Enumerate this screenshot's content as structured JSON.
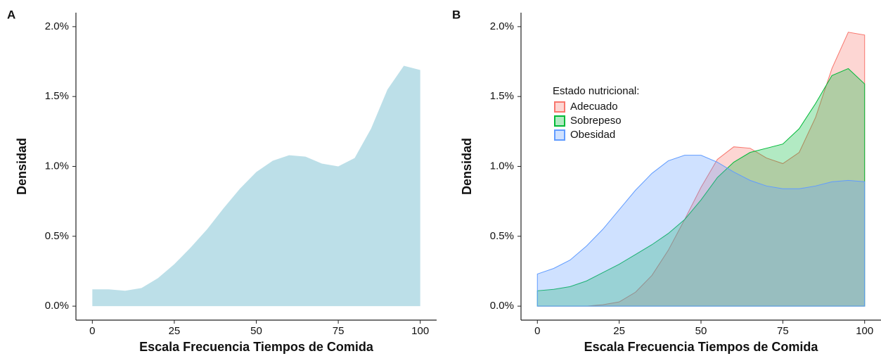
{
  "chart_data": [
    {
      "type": "area",
      "panel_label": "A",
      "xlabel": "Escala Frecuencia Tiempos de Comida",
      "ylabel": "Densidad",
      "x": [
        0,
        5,
        10,
        15,
        20,
        25,
        30,
        35,
        40,
        45,
        50,
        55,
        60,
        65,
        70,
        75,
        80,
        85,
        90,
        95,
        100
      ],
      "values": [
        0.12,
        0.12,
        0.11,
        0.13,
        0.2,
        0.3,
        0.42,
        0.55,
        0.7,
        0.84,
        0.96,
        1.04,
        1.08,
        1.07,
        1.02,
        1.0,
        1.06,
        1.27,
        1.55,
        1.72,
        1.69
      ],
      "color": "#bcdfe8",
      "xlim": [
        -5,
        105
      ],
      "xticks": [
        0,
        25,
        50,
        75,
        100
      ],
      "ylim": [
        -0.1,
        2.1
      ],
      "yticks": [
        {
          "value": 0,
          "label": "0.0%"
        },
        {
          "value": 0.5,
          "label": "0.5%"
        },
        {
          "value": 1,
          "label": "1.0%"
        },
        {
          "value": 1.5,
          "label": "1.5%"
        },
        {
          "value": 2,
          "label": "2.0%"
        }
      ]
    },
    {
      "type": "area",
      "panel_label": "B",
      "xlabel": "Escala Frecuencia Tiempos de Comida",
      "ylabel": "Densidad",
      "legend_title": "Estado nutricional:",
      "x": [
        0,
        5,
        10,
        15,
        20,
        25,
        30,
        35,
        40,
        45,
        50,
        55,
        60,
        65,
        70,
        75,
        80,
        85,
        90,
        95,
        100
      ],
      "series": [
        {
          "name": "Adecuado",
          "color": "#f8766d",
          "values": [
            0,
            0,
            0,
            0,
            0.01,
            0.03,
            0.1,
            0.22,
            0.4,
            0.62,
            0.85,
            1.05,
            1.14,
            1.13,
            1.06,
            1.02,
            1.1,
            1.35,
            1.7,
            1.96,
            1.94
          ]
        },
        {
          "name": "Sobrepeso",
          "color": "#00ba38",
          "values": [
            0.11,
            0.12,
            0.14,
            0.18,
            0.24,
            0.3,
            0.37,
            0.44,
            0.52,
            0.62,
            0.76,
            0.92,
            1.03,
            1.1,
            1.13,
            1.16,
            1.27,
            1.45,
            1.65,
            1.7,
            1.59
          ]
        },
        {
          "name": "Obesidad",
          "color": "#619cff",
          "values": [
            0.23,
            0.27,
            0.33,
            0.43,
            0.55,
            0.69,
            0.83,
            0.95,
            1.04,
            1.08,
            1.08,
            1.03,
            0.96,
            0.9,
            0.86,
            0.84,
            0.84,
            0.86,
            0.89,
            0.9,
            0.89
          ]
        }
      ],
      "xlim": [
        -5,
        105
      ],
      "xticks": [
        0,
        25,
        50,
        75,
        100
      ],
      "ylim": [
        -0.1,
        2.1
      ],
      "yticks": [
        {
          "value": 0,
          "label": "0.0%"
        },
        {
          "value": 0.5,
          "label": "0.5%"
        },
        {
          "value": 1,
          "label": "1.0%"
        },
        {
          "value": 1.5,
          "label": "1.5%"
        },
        {
          "value": 2,
          "label": "2.0%"
        }
      ]
    }
  ]
}
